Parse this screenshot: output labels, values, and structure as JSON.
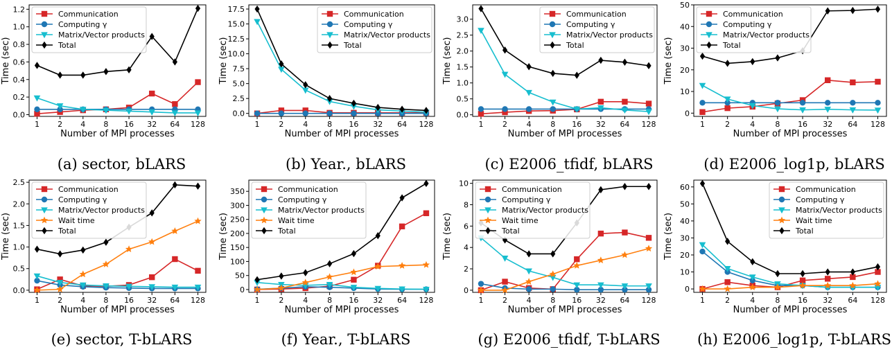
{
  "colors": {
    "communication": "#d62728",
    "computing": "#1f77b4",
    "matrix": "#17becf",
    "wait": "#ff7f0e",
    "total": "#000000"
  },
  "chart_data": [
    {
      "type": "line",
      "caption": "(a) sector, bLARS",
      "xlabel": "Number of MPI processes",
      "ylabel": "Time (sec)",
      "categories": [
        "1",
        "2",
        "4",
        "8",
        "16",
        "32",
        "64",
        "128"
      ],
      "yticks": [
        "0.0",
        "0.2",
        "0.4",
        "0.6",
        "0.8",
        "1.0",
        "1.2"
      ],
      "ylim": [
        -0.02,
        1.25
      ],
      "legend_position": "top-left",
      "series": [
        {
          "name": "Communication",
          "key": "communication",
          "marker": "square",
          "values": [
            0.01,
            0.03,
            0.05,
            0.06,
            0.08,
            0.24,
            0.12,
            0.37
          ]
        },
        {
          "name": "Computing γ",
          "key": "computing",
          "marker": "circle",
          "values": [
            0.06,
            0.06,
            0.06,
            0.06,
            0.06,
            0.06,
            0.06,
            0.06
          ]
        },
        {
          "name": "Matrix/Vector products",
          "key": "matrix",
          "marker": "triangle-down",
          "values": [
            0.19,
            0.1,
            0.06,
            0.05,
            0.04,
            0.03,
            0.02,
            0.02
          ]
        },
        {
          "name": "Total",
          "key": "total",
          "marker": "diamond",
          "values": [
            0.56,
            0.45,
            0.45,
            0.49,
            0.51,
            0.89,
            0.6,
            1.21
          ]
        }
      ]
    },
    {
      "type": "line",
      "caption": "(b) Year., bLARS",
      "xlabel": "Number of MPI processes",
      "ylabel": "Time (sec)",
      "categories": [
        "1",
        "2",
        "4",
        "8",
        "16",
        "32",
        "64",
        "128"
      ],
      "yticks": [
        "0.0",
        "2.5",
        "5.0",
        "7.5",
        "10.0",
        "12.5",
        "15.0",
        "17.5"
      ],
      "ylim": [
        -0.5,
        18.2
      ],
      "legend_position": "top-right",
      "series": [
        {
          "name": "Communication",
          "key": "communication",
          "marker": "square",
          "values": [
            0.0,
            0.5,
            0.5,
            0.1,
            0.1,
            0.1,
            0.1,
            0.1
          ]
        },
        {
          "name": "Computing γ",
          "key": "computing",
          "marker": "circle",
          "values": [
            0.0,
            0.0,
            0.0,
            0.0,
            0.0,
            0.0,
            0.0,
            0.0
          ]
        },
        {
          "name": "Matrix/Vector products",
          "key": "matrix",
          "marker": "triangle-down",
          "values": [
            15.4,
            7.4,
            3.9,
            2.0,
            1.2,
            0.6,
            0.4,
            0.2
          ]
        },
        {
          "name": "Total",
          "key": "total",
          "marker": "diamond",
          "values": [
            17.5,
            8.3,
            4.8,
            2.5,
            1.7,
            1.0,
            0.7,
            0.5
          ]
        }
      ]
    },
    {
      "type": "line",
      "caption": "(c) E2006_tfidf, bLARS",
      "xlabel": "Number of MPI processes",
      "ylabel": "Time (sec)",
      "categories": [
        "1",
        "2",
        "4",
        "8",
        "16",
        "32",
        "64",
        "128"
      ],
      "yticks": [
        "0.0",
        "0.5",
        "1.0",
        "1.5",
        "2.0",
        "2.5",
        "3.0"
      ],
      "ylim": [
        -0.05,
        3.45
      ],
      "legend_position": "top-right",
      "series": [
        {
          "name": "Communication",
          "key": "communication",
          "marker": "square",
          "values": [
            0.03,
            0.08,
            0.12,
            0.13,
            0.17,
            0.41,
            0.41,
            0.35
          ]
        },
        {
          "name": "Computing γ",
          "key": "computing",
          "marker": "circle",
          "values": [
            0.18,
            0.18,
            0.18,
            0.18,
            0.18,
            0.18,
            0.18,
            0.18
          ]
        },
        {
          "name": "Matrix/Vector products",
          "key": "matrix",
          "marker": "triangle-down",
          "values": [
            2.65,
            1.27,
            0.7,
            0.4,
            0.18,
            0.22,
            0.15,
            0.1
          ]
        },
        {
          "name": "Total",
          "key": "total",
          "marker": "diamond",
          "values": [
            3.33,
            2.03,
            1.51,
            1.3,
            1.24,
            1.71,
            1.65,
            1.54
          ]
        }
      ]
    },
    {
      "type": "line",
      "caption": "(d) E2006_log1p, bLARS",
      "xlabel": "Number of MPI processes",
      "ylabel": "Time (sec)",
      "categories": [
        "1",
        "2",
        "4",
        "8",
        "16",
        "32",
        "64",
        "128"
      ],
      "yticks": [
        "0",
        "10",
        "20",
        "30",
        "40",
        "50"
      ],
      "ylim": [
        -1.5,
        50
      ],
      "legend_position": "top-left",
      "series": [
        {
          "name": "Communication",
          "key": "communication",
          "marker": "square",
          "values": [
            0.5,
            2.3,
            3.0,
            4.5,
            6.0,
            15.2,
            14.2,
            14.5
          ]
        },
        {
          "name": "Computing γ",
          "key": "computing",
          "marker": "circle",
          "values": [
            4.8,
            4.8,
            4.8,
            4.8,
            4.8,
            4.8,
            4.8,
            4.8
          ]
        },
        {
          "name": "Matrix/Vector products",
          "key": "matrix",
          "marker": "triangle-down",
          "values": [
            12.8,
            6.5,
            3.5,
            2.0,
            1.5,
            1.8,
            1.5,
            1.4
          ]
        },
        {
          "name": "Total",
          "key": "total",
          "marker": "diamond",
          "values": [
            26.3,
            23.0,
            23.8,
            25.5,
            28.8,
            47.2,
            47.4,
            48.0
          ]
        }
      ]
    },
    {
      "type": "line",
      "caption": "(e) sector, T-bLARS",
      "xlabel": "Number of MPI processes",
      "ylabel": "Time (sec)",
      "categories": [
        "1",
        "2",
        "4",
        "8",
        "16",
        "32",
        "64",
        "128"
      ],
      "yticks": [
        "0.0",
        "0.5",
        "1.0",
        "1.5",
        "2.0",
        "2.5"
      ],
      "ylim": [
        -0.05,
        2.55
      ],
      "legend_position": "top-left",
      "series": [
        {
          "name": "Communication",
          "key": "communication",
          "marker": "square",
          "values": [
            0.02,
            0.25,
            0.1,
            0.09,
            0.12,
            0.3,
            0.72,
            0.45
          ]
        },
        {
          "name": "Computing γ",
          "key": "computing",
          "marker": "circle",
          "values": [
            0.22,
            0.12,
            0.08,
            0.06,
            0.05,
            0.04,
            0.04,
            0.04
          ]
        },
        {
          "name": "Matrix/Vector products",
          "key": "matrix",
          "marker": "triangle-down",
          "values": [
            0.33,
            0.18,
            0.12,
            0.1,
            0.09,
            0.08,
            0.07,
            0.07
          ]
        },
        {
          "name": "Wait time",
          "key": "wait",
          "marker": "star",
          "values": [
            0.0,
            0.02,
            0.37,
            0.6,
            0.95,
            1.12,
            1.37,
            1.6
          ]
        },
        {
          "name": "Total",
          "key": "total",
          "marker": "diamond",
          "values": [
            0.95,
            0.84,
            0.93,
            1.11,
            1.46,
            1.79,
            2.44,
            2.41
          ]
        }
      ]
    },
    {
      "type": "line",
      "caption": "(f) Year., T-bLARS",
      "xlabel": "Number of MPI processes",
      "ylabel": "Time (sec)",
      "categories": [
        "1",
        "2",
        "4",
        "8",
        "16",
        "32",
        "64",
        "128"
      ],
      "yticks": [
        "0",
        "50",
        "100",
        "150",
        "200",
        "250",
        "300",
        "350"
      ],
      "ylim": [
        -10,
        390
      ],
      "legend_position": "top-left",
      "series": [
        {
          "name": "Communication",
          "key": "communication",
          "marker": "square",
          "values": [
            0,
            2,
            5,
            12,
            35,
            85,
            225,
            272
          ]
        },
        {
          "name": "Computing γ",
          "key": "computing",
          "marker": "circle",
          "values": [
            1,
            5,
            10,
            8,
            5,
            2,
            1,
            1
          ]
        },
        {
          "name": "Matrix/Vector products",
          "key": "matrix",
          "marker": "triangle-down",
          "values": [
            25,
            18,
            15,
            18,
            8,
            4,
            2,
            1
          ]
        },
        {
          "name": "Wait time",
          "key": "wait",
          "marker": "star",
          "values": [
            0,
            5,
            25,
            45,
            62,
            82,
            85,
            88
          ]
        },
        {
          "name": "Total",
          "key": "total",
          "marker": "diamond",
          "values": [
            35,
            48,
            60,
            92,
            128,
            192,
            327,
            378
          ]
        }
      ]
    },
    {
      "type": "line",
      "caption": "(g) E2006_tfidf, T-bLARS",
      "xlabel": "Number of MPI processes",
      "ylabel": "Time (sec)",
      "categories": [
        "1",
        "2",
        "4",
        "8",
        "16",
        "32",
        "64",
        "128"
      ],
      "yticks": [
        "0",
        "2",
        "4",
        "6",
        "8",
        "10"
      ],
      "ylim": [
        -0.2,
        10.3
      ],
      "legend_position": "top-left",
      "series": [
        {
          "name": "Communication",
          "key": "communication",
          "marker": "square",
          "values": [
            0.0,
            0.8,
            0.2,
            0.1,
            2.9,
            5.3,
            5.4,
            4.9
          ]
        },
        {
          "name": "Computing γ",
          "key": "computing",
          "marker": "circle",
          "values": [
            0.6,
            0.2,
            0.1,
            0.1,
            0.05,
            0.05,
            0.05,
            0.05
          ]
        },
        {
          "name": "Matrix/Vector products",
          "key": "matrix",
          "marker": "triangle-down",
          "values": [
            4.9,
            3.0,
            1.8,
            1.2,
            0.5,
            0.5,
            0.4,
            0.4
          ]
        },
        {
          "name": "Wait time",
          "key": "wait",
          "marker": "star",
          "values": [
            0.0,
            0.0,
            0.8,
            1.5,
            2.3,
            2.8,
            3.3,
            3.9
          ]
        },
        {
          "name": "Total",
          "key": "total",
          "marker": "diamond",
          "values": [
            6.3,
            4.7,
            3.4,
            3.4,
            6.3,
            9.4,
            9.7,
            9.7
          ]
        }
      ]
    },
    {
      "type": "line",
      "caption": "(h) E2006_log1p, T-bLARS",
      "xlabel": "Number of MPI processes",
      "ylabel": "Time (sec)",
      "categories": [
        "1",
        "2",
        "4",
        "8",
        "16",
        "32",
        "64",
        "128"
      ],
      "yticks": [
        "0",
        "10",
        "20",
        "30",
        "40",
        "50",
        "60"
      ],
      "ylim": [
        -2,
        64
      ],
      "legend_position": "top-right",
      "series": [
        {
          "name": "Communication",
          "key": "communication",
          "marker": "square",
          "values": [
            0,
            4,
            2,
            1,
            5,
            6,
            7,
            10
          ]
        },
        {
          "name": "Computing γ",
          "key": "computing",
          "marker": "circle",
          "values": [
            22,
            10,
            5,
            2,
            2,
            1,
            1,
            1
          ]
        },
        {
          "name": "Matrix/Vector products",
          "key": "matrix",
          "marker": "triangle-down",
          "values": [
            26,
            12,
            7,
            3,
            2,
            1,
            1,
            1
          ]
        },
        {
          "name": "Wait time",
          "key": "wait",
          "marker": "star",
          "values": [
            0,
            0,
            1,
            1,
            2,
            2,
            2,
            3
          ]
        },
        {
          "name": "Total",
          "key": "total",
          "marker": "diamond",
          "values": [
            62,
            28,
            16,
            9,
            9,
            10,
            10,
            13
          ]
        }
      ]
    }
  ]
}
